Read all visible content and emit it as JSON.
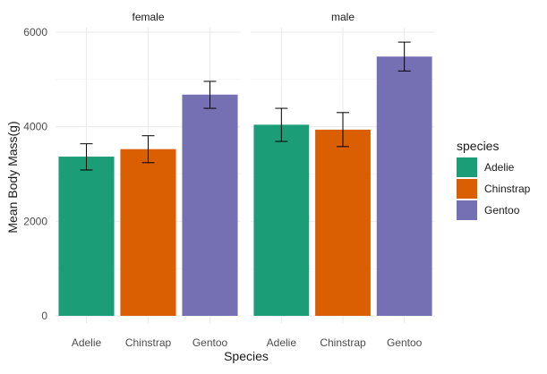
{
  "chart_data": {
    "type": "bar",
    "facets": [
      "female",
      "male"
    ],
    "categories": [
      "Adelie",
      "Chinstrap",
      "Gentoo"
    ],
    "series": [
      {
        "facet": "female",
        "values": [
          3368,
          3527,
          4680
        ],
        "error_low": [
          3085,
          3240,
          4390
        ],
        "error_high": [
          3640,
          3810,
          4960
        ]
      },
      {
        "facet": "male",
        "values": [
          4043,
          3939,
          5485
        ],
        "error_low": [
          3690,
          3580,
          5180
        ],
        "error_high": [
          4390,
          4300,
          5790
        ]
      }
    ],
    "xlabel": "Species",
    "ylabel": "Mean Body Mass(g)",
    "ylim": [
      0,
      6000
    ],
    "yticks": [
      0,
      2000,
      4000,
      6000
    ],
    "grid": true,
    "legend": {
      "title": "species",
      "position": "right",
      "items": [
        {
          "label": "Adelie",
          "color": "#1b9e77"
        },
        {
          "label": "Chinstrap",
          "color": "#d95f02"
        },
        {
          "label": "Gentoo",
          "color": "#7570b3"
        }
      ]
    }
  }
}
